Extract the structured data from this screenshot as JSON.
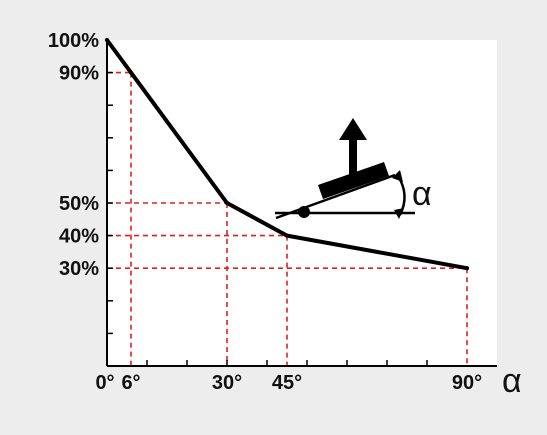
{
  "chart_data": {
    "type": "line",
    "title": "",
    "xlabel": "α",
    "ylabel": "",
    "xlim": [
      0,
      90
    ],
    "ylim": [
      0,
      100
    ],
    "x_ticks": [
      {
        "value": 0,
        "label": "0°"
      },
      {
        "value": 6,
        "label": "6°"
      },
      {
        "value": 30,
        "label": "30°"
      },
      {
        "value": 45,
        "label": "45°"
      },
      {
        "value": 90,
        "label": "90°"
      }
    ],
    "y_ticks": [
      {
        "value": 100,
        "label": "100%"
      },
      {
        "value": 90,
        "label": "90%"
      },
      {
        "value": 50,
        "label": "50%"
      },
      {
        "value": 40,
        "label": "40%"
      },
      {
        "value": 30,
        "label": "30%"
      }
    ],
    "series": [
      {
        "x": [
          0,
          6,
          30,
          45,
          90
        ],
        "y": [
          100,
          90,
          50,
          40,
          30
        ]
      }
    ],
    "reference_lines": [
      {
        "x": 6,
        "y": 90
      },
      {
        "x": 30,
        "y": 50
      },
      {
        "x": 45,
        "y": 40
      },
      {
        "x": 90,
        "y": 30
      }
    ],
    "inset_label": "α",
    "colors": {
      "background": "#ededed",
      "plot_area": "#ffffff",
      "line": "#000000",
      "reference": "#e02020",
      "axis": "#000000"
    }
  }
}
